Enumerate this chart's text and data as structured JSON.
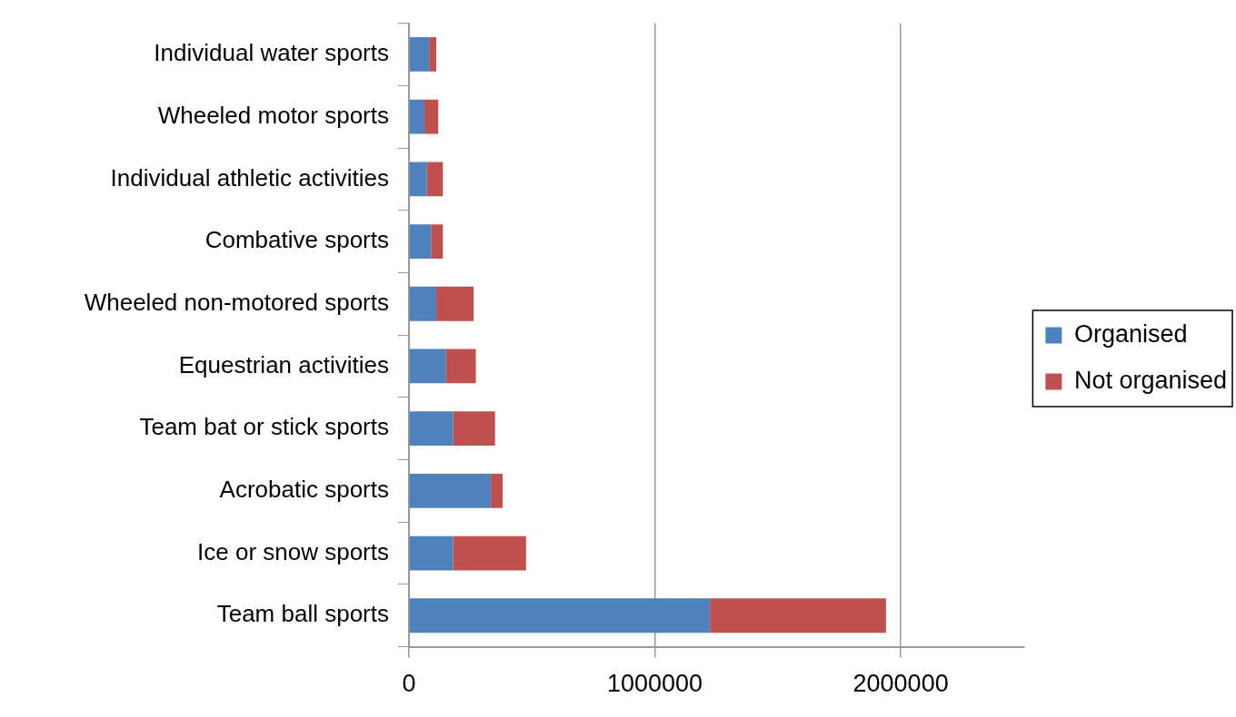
{
  "chart_data": {
    "type": "bar",
    "orientation": "horizontal",
    "stacked": true,
    "categories": [
      "Individual water sports",
      "Wheeled motor sports",
      "Individual athletic activities",
      "Combative sports",
      "Wheeled non-motored sports",
      "Equestrian activities",
      "Team bat or stick sports",
      "Acrobatic sports",
      "Ice or snow sports",
      "Team ball sports"
    ],
    "series": [
      {
        "name": "Organised",
        "color": "#4f81bd",
        "values": [
          82000,
          63000,
          73000,
          90000,
          111000,
          151000,
          180000,
          333000,
          180000,
          1224000
        ]
      },
      {
        "name": "Not organised",
        "color": "#c0504d",
        "values": [
          29000,
          56000,
          65000,
          48000,
          152000,
          121000,
          170000,
          48000,
          296000,
          716000
        ]
      }
    ],
    "xlim": [
      0,
      2500000
    ],
    "xticks": [
      0,
      1000000,
      2000000
    ],
    "grid": "x",
    "legend": "right"
  }
}
